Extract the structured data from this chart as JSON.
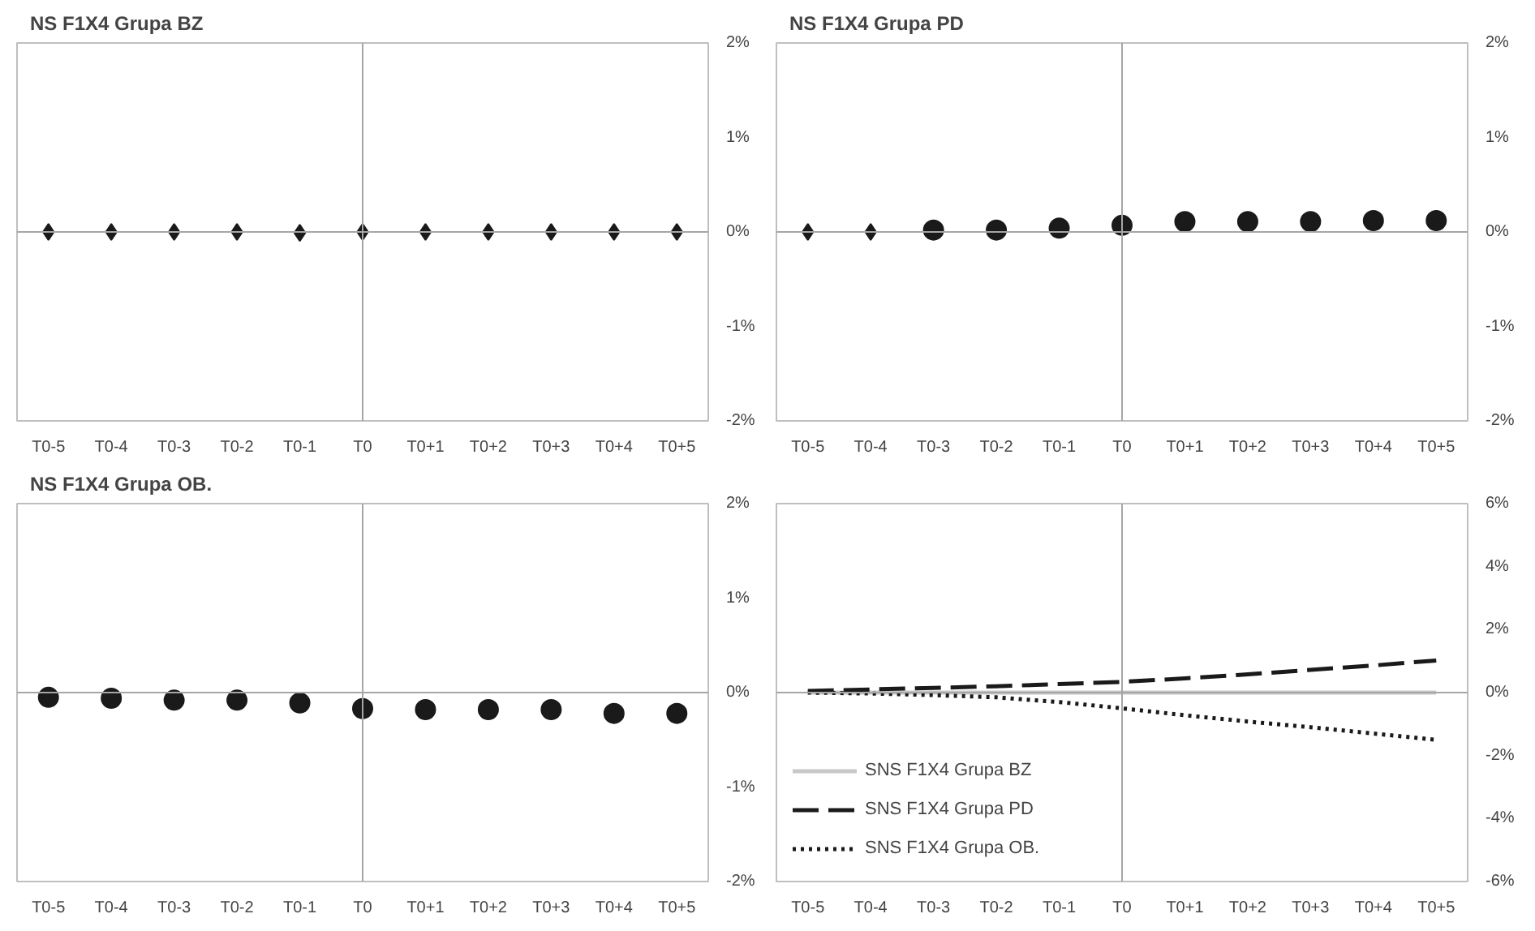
{
  "chart_data": [
    {
      "type": "scatter",
      "title": "NS F1X4 Grupa BZ",
      "categories": [
        "T0-5",
        "T0-4",
        "T0-3",
        "T0-2",
        "T0-1",
        "T0",
        "T0+1",
        "T0+2",
        "T0+3",
        "T0+4",
        "T0+5"
      ],
      "ylim": [
        -2,
        2
      ],
      "yticks": [
        {
          "value": -2,
          "label": "-2%"
        },
        {
          "value": -1,
          "label": "-1%"
        },
        {
          "value": 0,
          "label": "0%"
        },
        {
          "value": 1,
          "label": "1%"
        },
        {
          "value": 2,
          "label": "2%"
        }
      ],
      "grid": false,
      "legend": false,
      "ref_lines": [
        {
          "axis": "x",
          "value": "T0",
          "color": "#a6a6a6"
        },
        {
          "axis": "y",
          "value": 0,
          "color": "#a6a6a6"
        }
      ],
      "series": [
        {
          "color": "#1a1a1a",
          "marker": "diamond",
          "values": [
            0,
            0,
            0,
            0,
            -0.01,
            0,
            0,
            0,
            0,
            0,
            0
          ]
        }
      ]
    },
    {
      "type": "scatter",
      "title": "NS F1X4 Grupa PD",
      "categories": [
        "T0-5",
        "T0-4",
        "T0-3",
        "T0-2",
        "T0-1",
        "T0",
        "T0+1",
        "T0+2",
        "T0+3",
        "T0+4",
        "T0+5"
      ],
      "ylim": [
        -2,
        2
      ],
      "yticks": [
        {
          "value": -2,
          "label": "-2%"
        },
        {
          "value": -1,
          "label": "-1%"
        },
        {
          "value": 0,
          "label": "0%"
        },
        {
          "value": 1,
          "label": "1%"
        },
        {
          "value": 2,
          "label": "2%"
        }
      ],
      "grid": false,
      "legend": false,
      "ref_lines": [
        {
          "axis": "x",
          "value": "T0",
          "color": "#a6a6a6"
        },
        {
          "axis": "y",
          "value": 0,
          "color": "#a6a6a6"
        }
      ],
      "series": [
        {
          "color": "#1a1a1a",
          "marker": "diamond",
          "values": [
            0,
            0,
            null,
            null,
            null,
            null,
            null,
            null,
            null,
            null,
            null
          ]
        },
        {
          "color": "#1a1a1a",
          "marker": "circle",
          "values": [
            null,
            null,
            0.02,
            0.02,
            0.04,
            0.07,
            0.11,
            0.11,
            0.11,
            0.12,
            0.12
          ]
        }
      ]
    },
    {
      "type": "scatter",
      "title": "NS F1X4 Grupa OB.",
      "categories": [
        "T0-5",
        "T0-4",
        "T0-3",
        "T0-2",
        "T0-1",
        "T0",
        "T0+1",
        "T0+2",
        "T0+3",
        "T0+4",
        "T0+5"
      ],
      "ylim": [
        -2,
        2
      ],
      "yticks": [
        {
          "value": -2,
          "label": "-2%"
        },
        {
          "value": -1,
          "label": "-1%"
        },
        {
          "value": 0,
          "label": "0%"
        },
        {
          "value": 1,
          "label": "1%"
        },
        {
          "value": 2,
          "label": "2%"
        }
      ],
      "grid": false,
      "legend": false,
      "ref_lines": [
        {
          "axis": "x",
          "value": "T0",
          "color": "#a6a6a6"
        },
        {
          "axis": "y",
          "value": 0,
          "color": "#a6a6a6"
        }
      ],
      "series": [
        {
          "color": "#1a1a1a",
          "marker": "circle",
          "values": [
            -0.05,
            -0.06,
            -0.08,
            -0.08,
            -0.11,
            -0.17,
            -0.18,
            -0.18,
            -0.18,
            -0.22,
            -0.22
          ]
        }
      ]
    },
    {
      "type": "line",
      "categories": [
        "T0-5",
        "T0-4",
        "T0-3",
        "T0-2",
        "T0-1",
        "T0",
        "T0+1",
        "T0+2",
        "T0+3",
        "T0+4",
        "T0+5"
      ],
      "ylim": [
        -6,
        6
      ],
      "yticks": [
        {
          "value": -6,
          "label": "-6%"
        },
        {
          "value": -4,
          "label": "-4%"
        },
        {
          "value": -2,
          "label": "-2%"
        },
        {
          "value": 0,
          "label": "0%"
        },
        {
          "value": 2,
          "label": "2%"
        },
        {
          "value": 4,
          "label": "4%"
        },
        {
          "value": 6,
          "label": "6%"
        }
      ],
      "grid": false,
      "legend": "bottom left",
      "ref_lines": [
        {
          "axis": "x",
          "value": "T0",
          "color": "#a6a6a6"
        },
        {
          "axis": "y",
          "value": 0,
          "color": "#a6a6a6"
        }
      ],
      "series": [
        {
          "name": "SNS F1X4 Grupa BZ",
          "color": "#c8c8c8",
          "line_style": "solid",
          "values": [
            0,
            0,
            0,
            0,
            0,
            0,
            0,
            0,
            0,
            0,
            0
          ]
        },
        {
          "name": "SNS F1X4 Grupa PD",
          "color": "#1a1a1a",
          "line_style": "dashed",
          "values": [
            0.05,
            0.1,
            0.15,
            0.2,
            0.27,
            0.34,
            0.45,
            0.58,
            0.72,
            0.86,
            1.02
          ]
        },
        {
          "name": "SNS F1X4 Grupa OB.",
          "color": "#1a1a1a",
          "line_style": "dotted",
          "values": [
            0,
            -0.03,
            -0.08,
            -0.15,
            -0.3,
            -0.5,
            -0.72,
            -0.92,
            -1.1,
            -1.3,
            -1.5
          ]
        }
      ]
    }
  ]
}
